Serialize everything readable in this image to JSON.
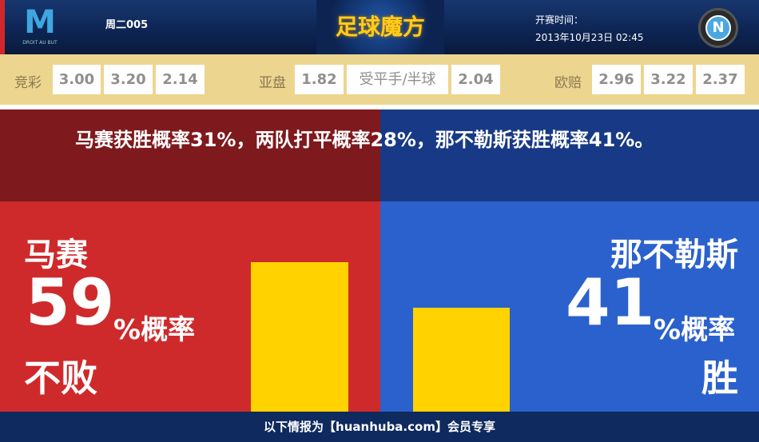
{
  "header": {
    "home_logo_text": "DROIT AU BUT",
    "match_code": "周二005",
    "brand": "足球魔方",
    "kickoff_label": "开赛时间：",
    "kickoff_time": "2013年10月23日 02:45",
    "away_logo_text": "N"
  },
  "odds": {
    "jingcai": {
      "label": "竞彩",
      "values": [
        "3.00",
        "3.20",
        "2.14"
      ]
    },
    "asian": {
      "label": "亚盘",
      "home": "1.82",
      "line": "受平手/半球",
      "away": "2.04"
    },
    "euro": {
      "label": "欧赔",
      "values": [
        "2.96",
        "3.22",
        "2.37"
      ]
    }
  },
  "summary": "马赛获胜概率31%，两队打平概率28%，那不勒斯获胜概率41%。",
  "home": {
    "team": "马赛",
    "percent": "59",
    "percent_suffix": "%概率",
    "outcome": "不败",
    "value": 59
  },
  "away": {
    "team": "那不勒斯",
    "percent": "41",
    "percent_suffix": "%概率",
    "outcome": "胜",
    "value": 41
  },
  "colors": {
    "home": "#cf2a2b",
    "away": "#2b61cd",
    "bar": "#ffd200"
  },
  "footer": "以下情报为【huanhuba.com】会员专享"
}
